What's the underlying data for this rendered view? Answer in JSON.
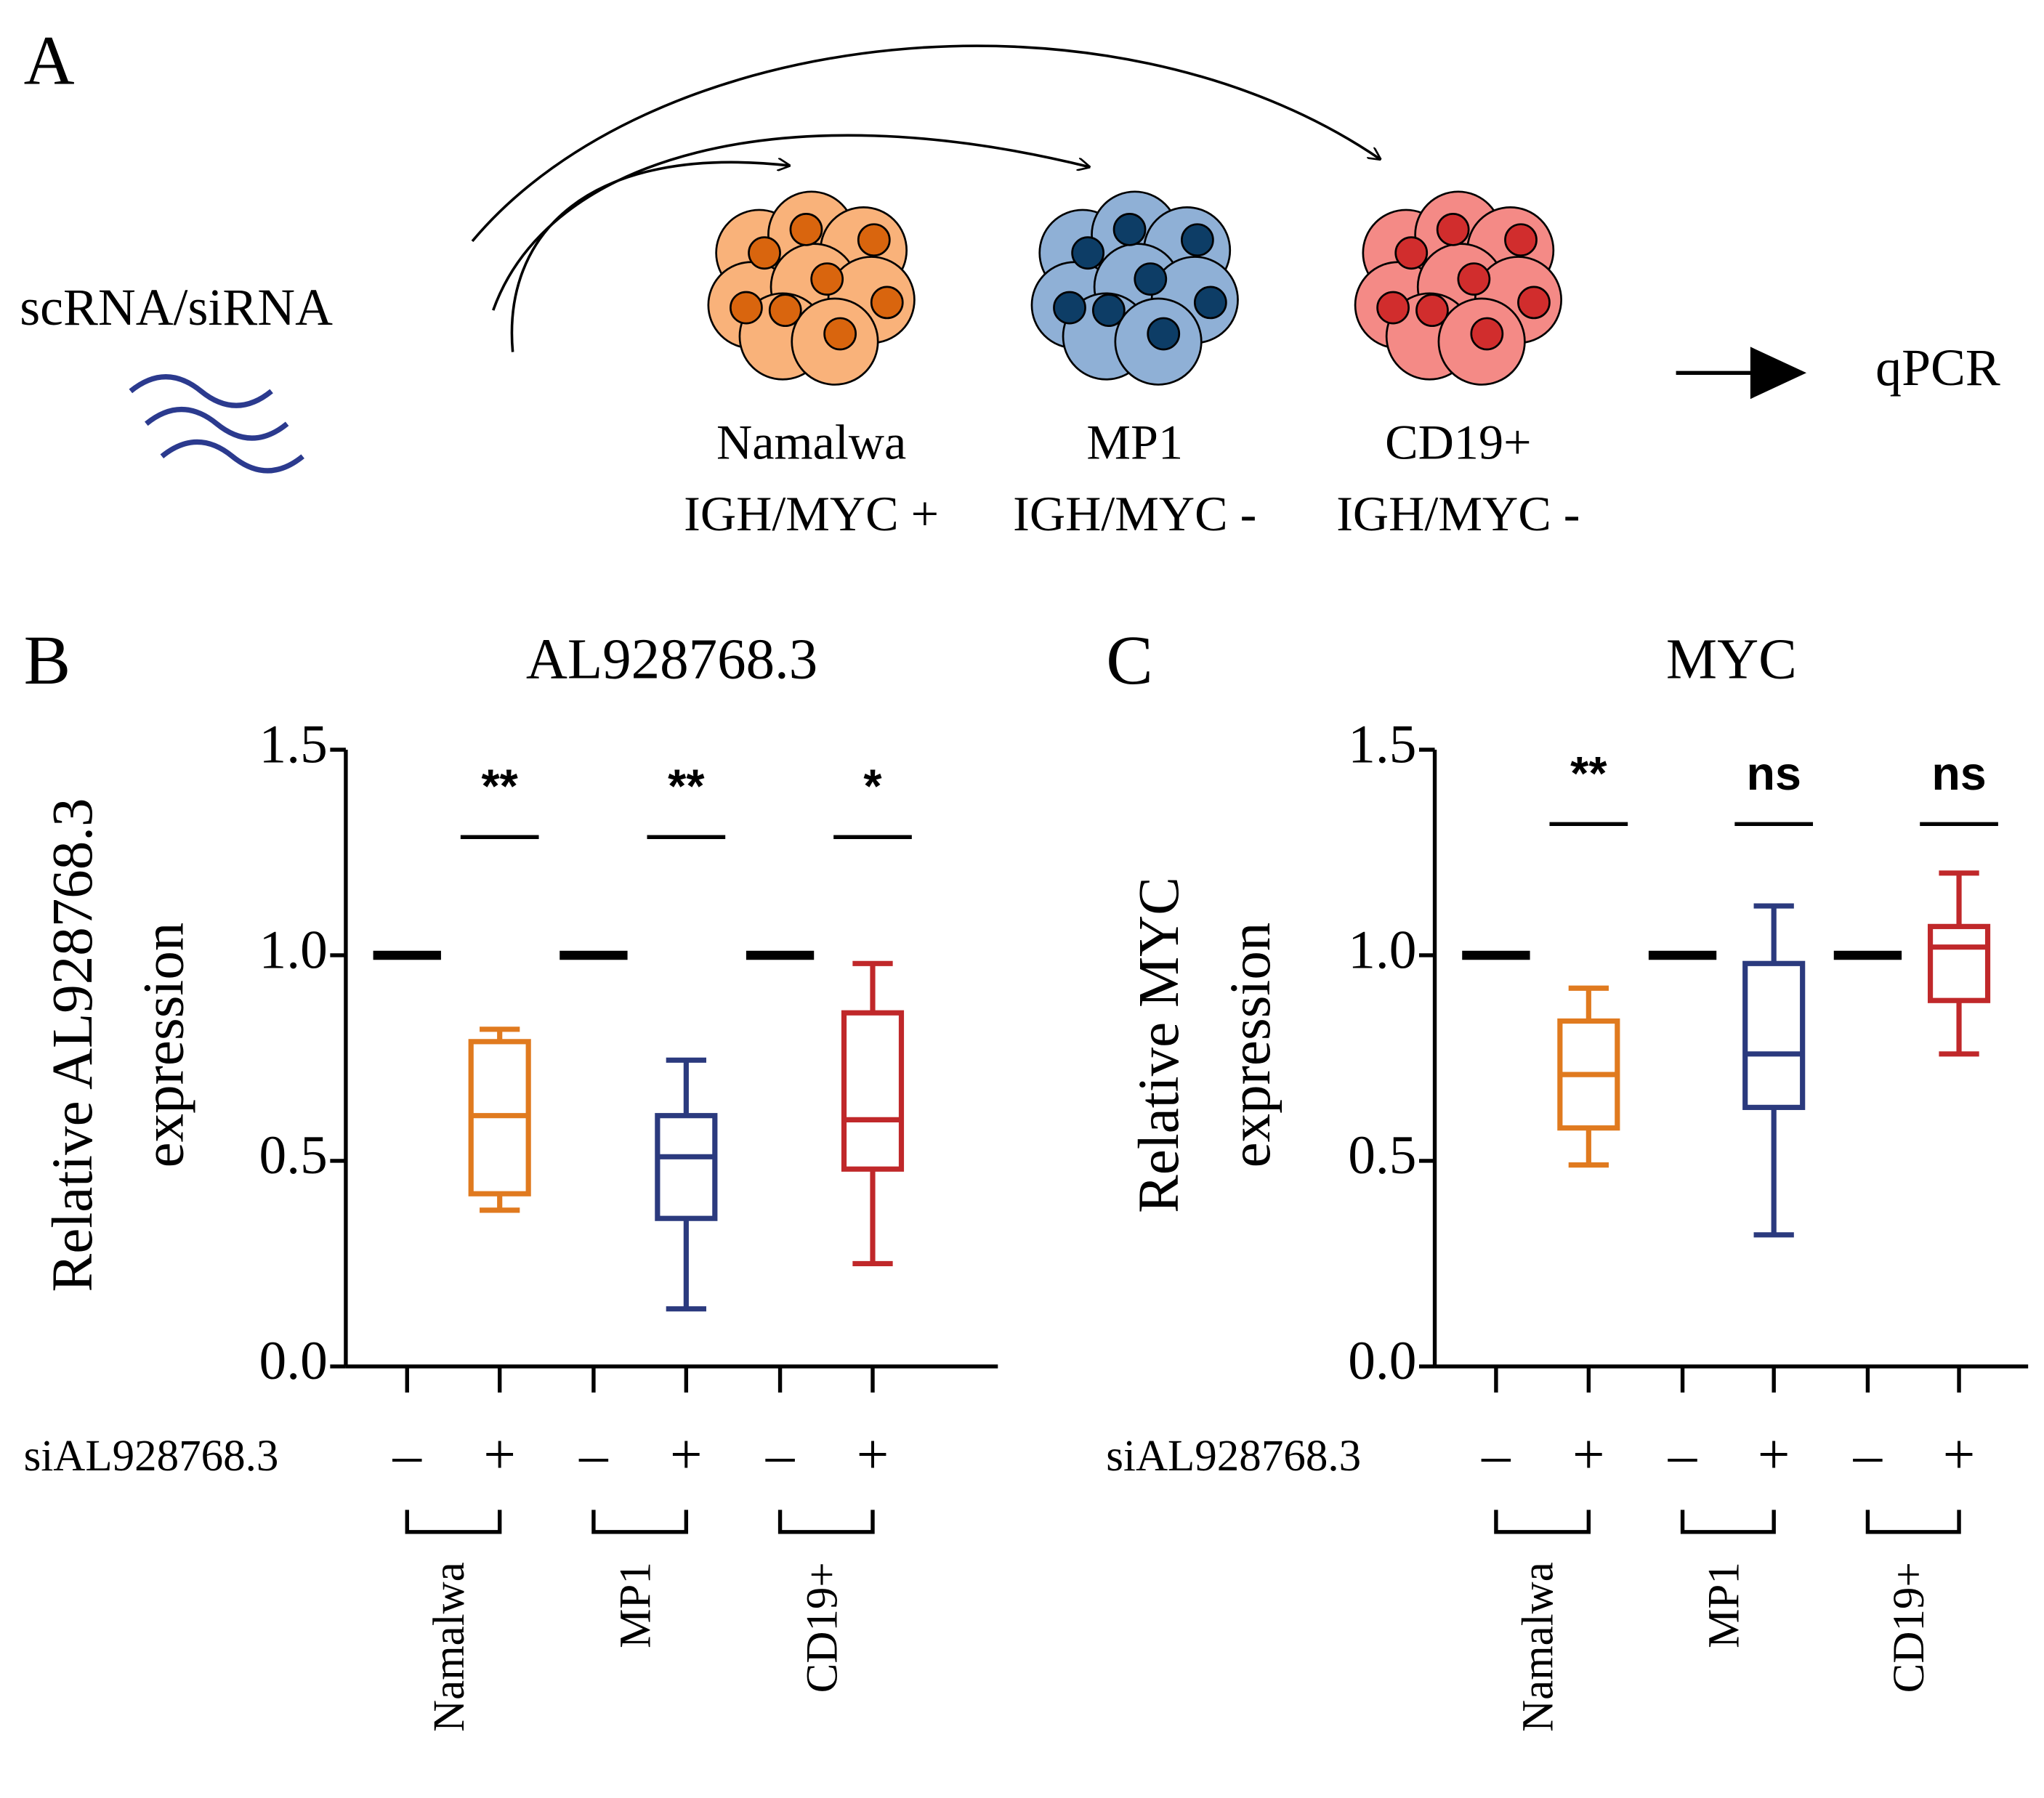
{
  "panel_a": {
    "letter": "A",
    "input": "scRNA/siRNA",
    "output": "qPCR",
    "cells": [
      {
        "name": "Namalwa",
        "status": "IGH/MYC +"
      },
      {
        "name": "MP1",
        "status": "IGH/MYC -"
      },
      {
        "name": "CD19+",
        "status": "IGH/MYC -"
      }
    ]
  },
  "chart_data": [
    {
      "type": "box",
      "panel": "B",
      "title": "AL928768.3",
      "ylabel": [
        "Relative AL928768.3",
        "expression"
      ],
      "treatment": "siAL928768.3",
      "categories": [
        "–",
        "+",
        "–",
        "+",
        "–",
        "+"
      ],
      "groups": [
        "Namalwa",
        "MP1",
        "CD19+"
      ],
      "significance": [
        "**",
        "**",
        "*"
      ],
      "ylim": [
        0,
        1.5
      ],
      "yticks": [
        {
          "value": 0,
          "label": "0.0"
        },
        0.5,
        {
          "value": 1,
          "label": "1.0"
        },
        1.5
      ],
      "boxes": [
        {
          "color": "#000000",
          "min": 1.0,
          "q1": 1.0,
          "median": 1.0,
          "q3": 1.0,
          "max": 1.0
        },
        {
          "color": "#e07a1f",
          "min": 0.38,
          "q1": 0.42,
          "median": 0.61,
          "q3": 0.79,
          "max": 0.82
        },
        {
          "color": "#000000",
          "min": 1.0,
          "q1": 1.0,
          "median": 1.0,
          "q3": 1.0,
          "max": 1.0
        },
        {
          "color": "#2b3a7e",
          "min": 0.14,
          "q1": 0.36,
          "median": 0.51,
          "q3": 0.61,
          "max": 0.745
        },
        {
          "color": "#000000",
          "min": 1.0,
          "q1": 1.0,
          "median": 1.0,
          "q3": 1.0,
          "max": 1.0
        },
        {
          "color": "#c0282a",
          "min": 0.25,
          "q1": 0.48,
          "median": 0.6,
          "q3": 0.86,
          "max": 0.98
        }
      ]
    },
    {
      "type": "box",
      "panel": "C",
      "title": "MYC",
      "ylabel": [
        "Relative MYC",
        "expression"
      ],
      "treatment": "siAL928768.3",
      "categories": [
        "–",
        "+",
        "–",
        "+",
        "–",
        "+"
      ],
      "groups": [
        "Namalwa",
        "MP1",
        "CD19+"
      ],
      "significance": [
        "**",
        "ns",
        "ns"
      ],
      "ylim": [
        0,
        1.5
      ],
      "yticks": [
        {
          "value": 0,
          "label": "0.0"
        },
        0.5,
        {
          "value": 1,
          "label": "1.0"
        },
        1.5
      ],
      "boxes": [
        {
          "color": "#000000",
          "min": 1.0,
          "q1": 1.0,
          "median": 1.0,
          "q3": 1.0,
          "max": 1.0
        },
        {
          "color": "#e07a1f",
          "min": 0.49,
          "q1": 0.58,
          "median": 0.71,
          "q3": 0.84,
          "max": 0.92
        },
        {
          "color": "#000000",
          "min": 1.0,
          "q1": 1.0,
          "median": 1.0,
          "q3": 1.0,
          "max": 1.0
        },
        {
          "color": "#2b3a7e",
          "min": 0.32,
          "q1": 0.63,
          "median": 0.76,
          "q3": 0.98,
          "max": 1.12
        },
        {
          "color": "#000000",
          "min": 1.0,
          "q1": 1.0,
          "median": 1.0,
          "q3": 1.0,
          "max": 1.0
        },
        {
          "color": "#c0282a",
          "min": 0.76,
          "q1": 0.89,
          "median": 1.02,
          "q3": 1.07,
          "max": 1.2
        }
      ]
    }
  ]
}
